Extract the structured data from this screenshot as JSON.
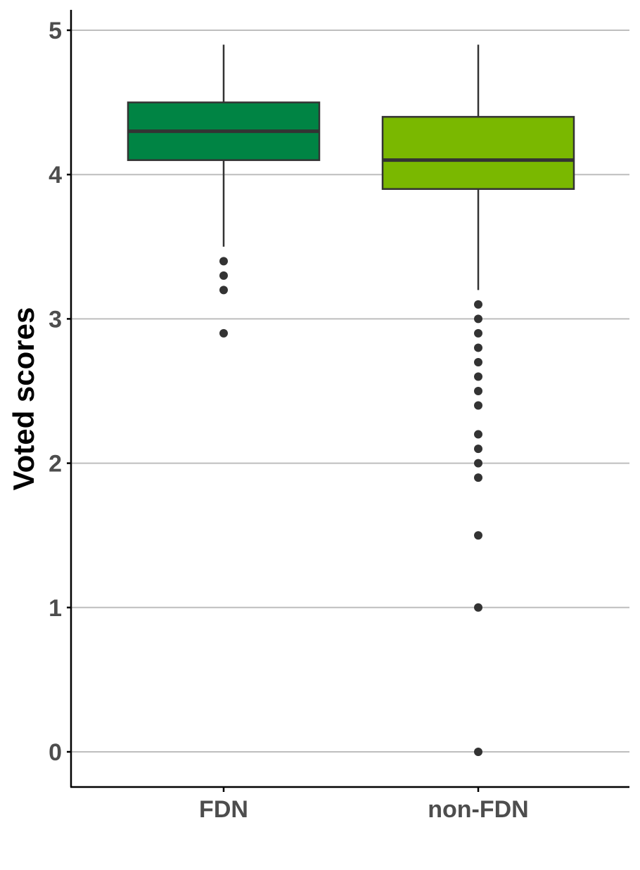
{
  "chart_data": {
    "type": "boxplot",
    "title": "",
    "xlabel": "",
    "ylabel": "Voted scores",
    "ylim": [
      -0.25,
      5.15
    ],
    "yticks": [
      0,
      1,
      2,
      3,
      4,
      5
    ],
    "ytick_labels": [
      "0",
      "1",
      "2",
      "3",
      "4",
      "5"
    ],
    "grid": "horizontal major",
    "legend": "none",
    "categories": [
      "FDN",
      "non-FDN"
    ],
    "boxes": [
      {
        "category": "FDN",
        "whisker_low": 3.5,
        "q1": 4.1,
        "median": 4.3,
        "q3": 4.5,
        "whisker_high": 4.9,
        "outliers": [
          3.4,
          3.3,
          3.2,
          2.9
        ],
        "color": "#008444"
      },
      {
        "category": "non-FDN",
        "whisker_low": 3.2,
        "q1": 3.9,
        "median": 4.1,
        "q3": 4.4,
        "whisker_high": 4.9,
        "outliers": [
          3.1,
          3.0,
          2.9,
          2.8,
          2.7,
          2.6,
          2.5,
          2.4,
          2.2,
          2.1,
          2.0,
          1.9,
          1.5,
          1.0,
          0.0
        ],
        "color": "#7ab800"
      }
    ]
  }
}
